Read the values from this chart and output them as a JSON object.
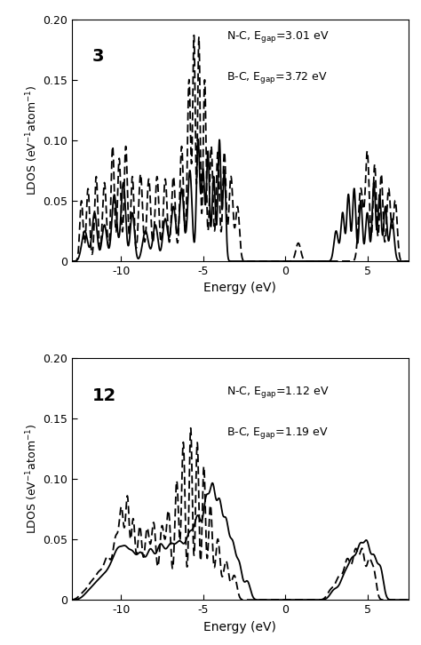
{
  "panel1_label": "3",
  "panel2_label": "12",
  "ylabel": "LDOS (eV$^{-1}$atom$^{-1}$)",
  "xlabel": "Energy (eV)",
  "xlim": [
    -13.0,
    7.5
  ],
  "ylim": [
    0,
    0.2
  ],
  "yticks": [
    0,
    0.05,
    0.1,
    0.15,
    0.2
  ],
  "xticks": [
    -10,
    -5,
    0,
    5
  ],
  "bg_color": "#ffffff",
  "line_color": "#000000"
}
